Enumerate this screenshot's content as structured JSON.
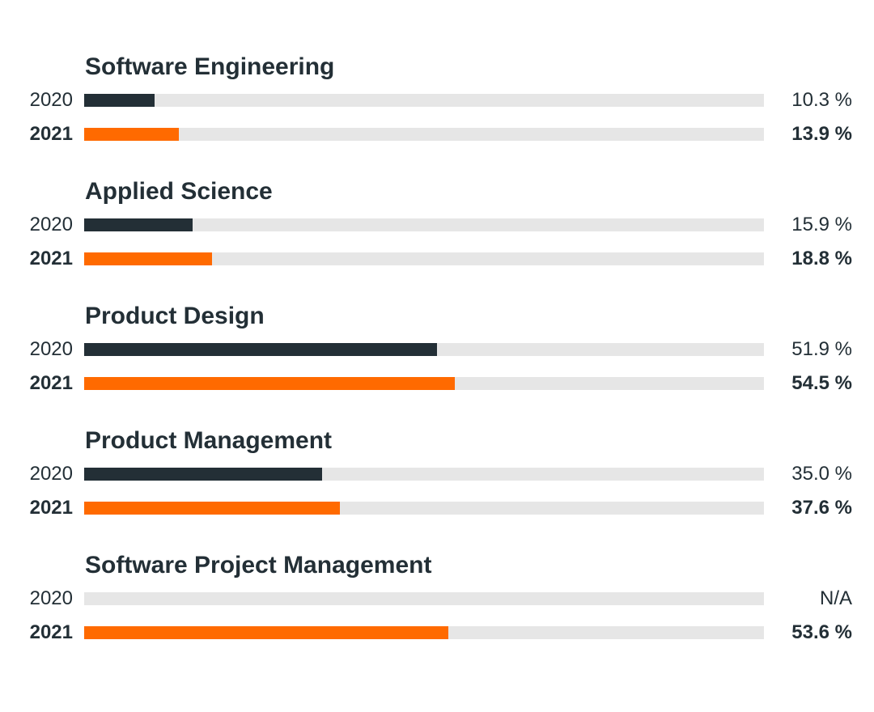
{
  "chart_data": {
    "type": "bar",
    "orientation": "horizontal",
    "xlim": [
      0,
      100
    ],
    "series": [
      {
        "name": "2020",
        "color": "#232f36"
      },
      {
        "name": "2021",
        "color": "#ff6a00"
      }
    ],
    "track_color": "#e6e6e6",
    "categories": [
      {
        "name": "Software Engineering",
        "rows": [
          {
            "year": "2020",
            "value": 10.3,
            "label": "10.3 %"
          },
          {
            "year": "2021",
            "value": 13.9,
            "label": "13.9 %"
          }
        ]
      },
      {
        "name": "Applied Science",
        "rows": [
          {
            "year": "2020",
            "value": 15.9,
            "label": "15.9 %"
          },
          {
            "year": "2021",
            "value": 18.8,
            "label": "18.8 %"
          }
        ]
      },
      {
        "name": "Product Design",
        "rows": [
          {
            "year": "2020",
            "value": 51.9,
            "label": "51.9 %"
          },
          {
            "year": "2021",
            "value": 54.5,
            "label": "54.5 %"
          }
        ]
      },
      {
        "name": "Product Management",
        "rows": [
          {
            "year": "2020",
            "value": 35.0,
            "label": "35.0 %"
          },
          {
            "year": "2021",
            "value": 37.6,
            "label": "37.6 %"
          }
        ]
      },
      {
        "name": "Software Project Management",
        "rows": [
          {
            "year": "2020",
            "value": null,
            "label": "N/A"
          },
          {
            "year": "2021",
            "value": 53.6,
            "label": "53.6 %"
          }
        ]
      }
    ]
  }
}
